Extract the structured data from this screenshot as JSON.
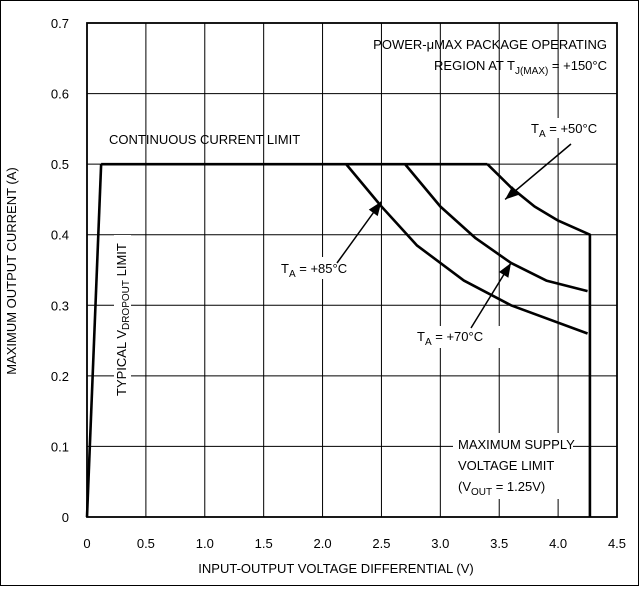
{
  "chart_data": {
    "type": "line",
    "title": "",
    "xlabel": "INPUT-OUTPUT VOLTAGE DIFFERENTIAL (V)",
    "ylabel": "MAXIMUM OUTPUT CURRENT (A)",
    "xlim": [
      0,
      4.5
    ],
    "ylim": [
      0,
      0.7
    ],
    "xticks": [
      "0",
      "0.5",
      "1.0",
      "1.5",
      "2.0",
      "2.5",
      "3.0",
      "3.5",
      "4.0",
      "4.5"
    ],
    "yticks": [
      "0",
      "0.1",
      "0.2",
      "0.3",
      "0.4",
      "0.5",
      "0.6",
      "0.7"
    ],
    "grid": true,
    "curves": {
      "dropout": {
        "x": [
          0,
          0.12
        ],
        "y": [
          0,
          0.5
        ]
      },
      "current_limit": {
        "x": [
          0.12,
          3.4
        ],
        "y": [
          0.5,
          0.5
        ]
      },
      "ta_50": {
        "x": [
          3.4,
          3.6,
          3.8,
          4.0,
          4.27,
          4.27
        ],
        "y": [
          0.5,
          0.467,
          0.44,
          0.42,
          0.4,
          0
        ]
      },
      "ta_70": {
        "x": [
          2.7,
          3.0,
          3.3,
          3.6,
          3.9,
          4.25
        ],
        "y": [
          0.5,
          0.44,
          0.395,
          0.36,
          0.335,
          0.32
        ]
      },
      "ta_85": {
        "x": [
          2.2,
          2.5,
          2.8,
          3.2,
          3.6,
          4.25
        ],
        "y": [
          0.5,
          0.44,
          0.385,
          0.335,
          0.3,
          0.26
        ]
      }
    },
    "annotations": {
      "region_line1": "POWER-μMAX PACKAGE OPERATING",
      "region_line2_main": "REGION AT T",
      "region_line2_sub": "J(MAX)",
      "region_line2_end": " = +150°C",
      "continuous_limit": "CONTINUOUS CURRENT LIMIT",
      "dropout_main": "TYPICAL V",
      "dropout_sub": "DROPOUT",
      "dropout_end": " LIMIT",
      "ta_prefix": "T",
      "ta_sub": "A",
      "ta_50_value": " = +50°C",
      "ta_70_value": " = +70°C",
      "ta_85_value": " = +85°C",
      "supply_line1": "MAXIMUM SUPPLY",
      "supply_line2": "VOLTAGE LIMIT",
      "supply_line3_a": "(V",
      "supply_line3_sub": "OUT",
      "supply_line3_b": " = 1.25V)"
    }
  }
}
